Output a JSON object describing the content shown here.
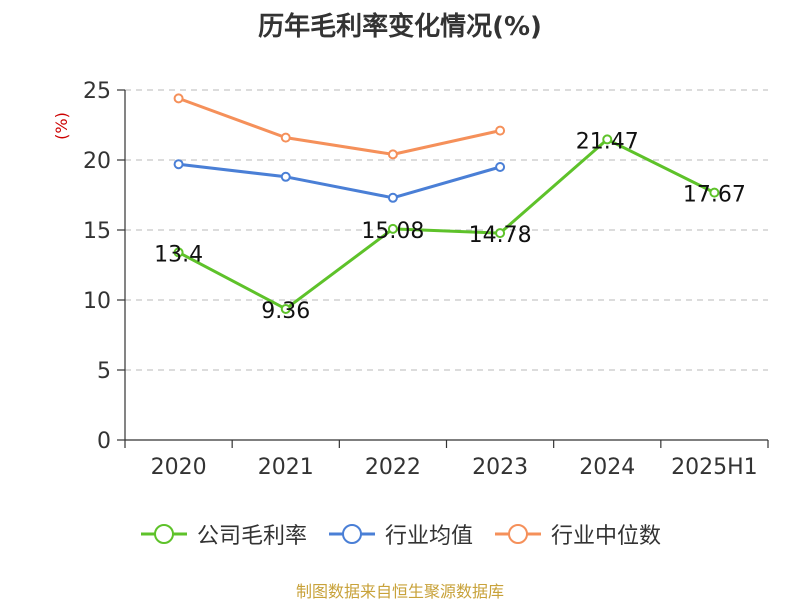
{
  "chart_data": {
    "type": "line",
    "title": "历年毛利率变化情况(%)",
    "ylabel": "(%)",
    "xlabel": "",
    "categories": [
      "2020",
      "2021",
      "2022",
      "2023",
      "2024",
      "2025H1"
    ],
    "ylim": [
      0,
      25
    ],
    "yticks": [
      0,
      5,
      10,
      15,
      20,
      25
    ],
    "grid": true,
    "legend_position": "bottom",
    "series": [
      {
        "name": "公司毛利率",
        "color": "#5ec22a",
        "values": [
          13.4,
          9.36,
          15.08,
          14.78,
          21.47,
          17.67
        ],
        "labels": [
          "13.4",
          "9.36",
          "15.08",
          "14.78",
          "21.47",
          "17.67"
        ]
      },
      {
        "name": "行业均值",
        "color": "#4a7fd6",
        "values": [
          19.7,
          18.8,
          17.3,
          19.5,
          null,
          null
        ]
      },
      {
        "name": "行业中位数",
        "color": "#f5905a",
        "values": [
          24.4,
          21.6,
          20.4,
          22.1,
          null,
          null
        ]
      }
    ]
  },
  "source": "制图数据来自恒生聚源数据库"
}
